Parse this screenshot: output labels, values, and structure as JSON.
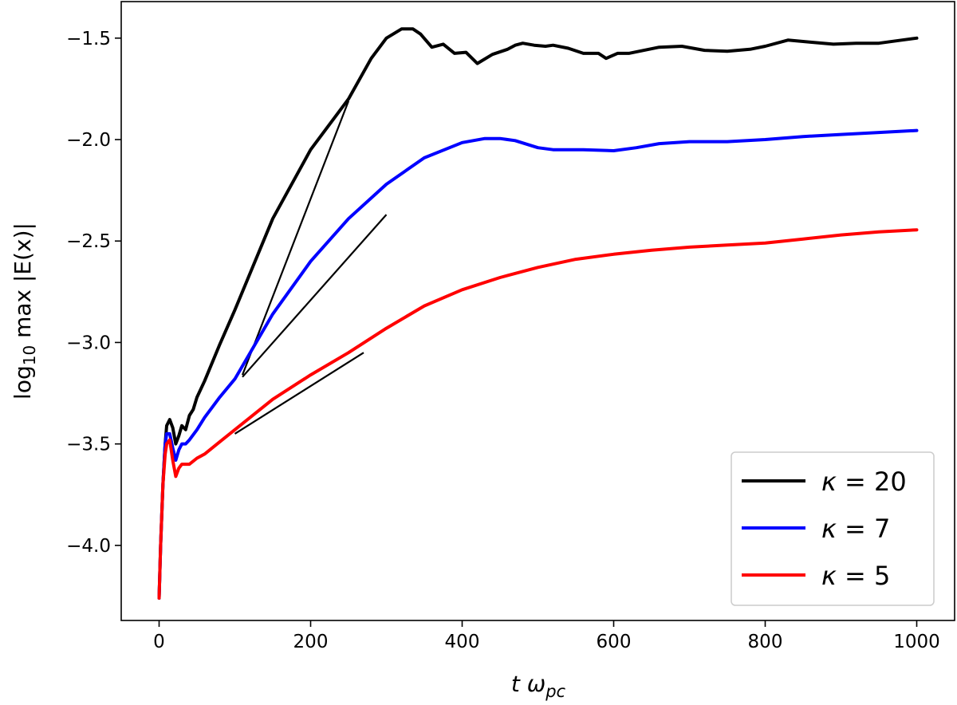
{
  "chart_data": {
    "type": "line",
    "xlabel": "t ω_pc",
    "xlabel_parts": {
      "main": "t ω",
      "sub": "pc"
    },
    "ylabel": "log10 max |E(x)|",
    "ylabel_parts": {
      "pre": "log",
      "sub": "10",
      "post": " max |E(x)|"
    },
    "xlim": [
      -50,
      1050
    ],
    "ylim": [
      -4.37,
      -1.32
    ],
    "xticks": [
      0,
      200,
      400,
      600,
      800,
      1000
    ],
    "xtick_labels": [
      "0",
      "200",
      "400",
      "600",
      "800",
      "1000"
    ],
    "yticks": [
      -4.0,
      -3.5,
      -3.0,
      -2.5,
      -2.0,
      -1.5
    ],
    "ytick_labels": [
      "−4.0",
      "−3.5",
      "−3.0",
      "−2.5",
      "−2.0",
      "−1.5"
    ],
    "grid": false,
    "legend_position": "bottom-right",
    "series": [
      {
        "name": "κ = 20",
        "label_parts": {
          "sym": "κ",
          "rest": " = 20"
        },
        "color": "#000000",
        "points": [
          [
            0,
            -4.26
          ],
          [
            2,
            -4.0
          ],
          [
            5,
            -3.7
          ],
          [
            8,
            -3.5
          ],
          [
            10,
            -3.41
          ],
          [
            14,
            -3.38
          ],
          [
            18,
            -3.42
          ],
          [
            22,
            -3.5
          ],
          [
            26,
            -3.46
          ],
          [
            30,
            -3.41
          ],
          [
            35,
            -3.43
          ],
          [
            40,
            -3.36
          ],
          [
            45,
            -3.33
          ],
          [
            50,
            -3.27
          ],
          [
            60,
            -3.19
          ],
          [
            80,
            -3.01
          ],
          [
            100,
            -2.84
          ],
          [
            120,
            -2.66
          ],
          [
            150,
            -2.39
          ],
          [
            200,
            -2.05
          ],
          [
            250,
            -1.8
          ],
          [
            280,
            -1.6
          ],
          [
            300,
            -1.5
          ],
          [
            320,
            -1.455
          ],
          [
            335,
            -1.455
          ],
          [
            345,
            -1.48
          ],
          [
            360,
            -1.545
          ],
          [
            375,
            -1.53
          ],
          [
            390,
            -1.575
          ],
          [
            405,
            -1.57
          ],
          [
            420,
            -1.625
          ],
          [
            440,
            -1.58
          ],
          [
            460,
            -1.555
          ],
          [
            470,
            -1.535
          ],
          [
            480,
            -1.525
          ],
          [
            495,
            -1.535
          ],
          [
            510,
            -1.54
          ],
          [
            520,
            -1.535
          ],
          [
            540,
            -1.55
          ],
          [
            560,
            -1.575
          ],
          [
            580,
            -1.575
          ],
          [
            590,
            -1.6
          ],
          [
            605,
            -1.575
          ],
          [
            620,
            -1.575
          ],
          [
            640,
            -1.56
          ],
          [
            660,
            -1.545
          ],
          [
            690,
            -1.54
          ],
          [
            720,
            -1.56
          ],
          [
            750,
            -1.565
          ],
          [
            780,
            -1.555
          ],
          [
            800,
            -1.54
          ],
          [
            830,
            -1.51
          ],
          [
            860,
            -1.52
          ],
          [
            890,
            -1.53
          ],
          [
            920,
            -1.525
          ],
          [
            950,
            -1.525
          ],
          [
            980,
            -1.51
          ],
          [
            1000,
            -1.5
          ]
        ]
      },
      {
        "name": "κ = 7",
        "label_parts": {
          "sym": "κ",
          "rest": " = 7"
        },
        "color": "#0000ff",
        "points": [
          [
            0,
            -4.26
          ],
          [
            2,
            -4.0
          ],
          [
            5,
            -3.7
          ],
          [
            8,
            -3.5
          ],
          [
            10,
            -3.45
          ],
          [
            14,
            -3.45
          ],
          [
            18,
            -3.52
          ],
          [
            22,
            -3.58
          ],
          [
            26,
            -3.53
          ],
          [
            30,
            -3.5
          ],
          [
            35,
            -3.5
          ],
          [
            40,
            -3.48
          ],
          [
            50,
            -3.43
          ],
          [
            60,
            -3.37
          ],
          [
            80,
            -3.27
          ],
          [
            100,
            -3.18
          ],
          [
            150,
            -2.86
          ],
          [
            200,
            -2.6
          ],
          [
            250,
            -2.39
          ],
          [
            300,
            -2.22
          ],
          [
            350,
            -2.09
          ],
          [
            400,
            -2.015
          ],
          [
            430,
            -1.995
          ],
          [
            450,
            -1.995
          ],
          [
            470,
            -2.005
          ],
          [
            500,
            -2.04
          ],
          [
            520,
            -2.05
          ],
          [
            560,
            -2.05
          ],
          [
            600,
            -2.055
          ],
          [
            630,
            -2.04
          ],
          [
            660,
            -2.02
          ],
          [
            700,
            -2.01
          ],
          [
            750,
            -2.01
          ],
          [
            800,
            -2.0
          ],
          [
            850,
            -1.985
          ],
          [
            900,
            -1.975
          ],
          [
            950,
            -1.965
          ],
          [
            1000,
            -1.955
          ]
        ]
      },
      {
        "name": "κ = 5",
        "label_parts": {
          "sym": "κ",
          "rest": " = 5"
        },
        "color": "#ff0000",
        "points": [
          [
            0,
            -4.26
          ],
          [
            2,
            -4.0
          ],
          [
            5,
            -3.7
          ],
          [
            8,
            -3.55
          ],
          [
            10,
            -3.5
          ],
          [
            14,
            -3.48
          ],
          [
            18,
            -3.58
          ],
          [
            22,
            -3.66
          ],
          [
            26,
            -3.62
          ],
          [
            30,
            -3.6
          ],
          [
            40,
            -3.6
          ],
          [
            50,
            -3.57
          ],
          [
            60,
            -3.55
          ],
          [
            80,
            -3.49
          ],
          [
            100,
            -3.43
          ],
          [
            150,
            -3.28
          ],
          [
            200,
            -3.16
          ],
          [
            250,
            -3.05
          ],
          [
            300,
            -2.93
          ],
          [
            350,
            -2.82
          ],
          [
            400,
            -2.74
          ],
          [
            450,
            -2.68
          ],
          [
            500,
            -2.63
          ],
          [
            550,
            -2.59
          ],
          [
            600,
            -2.565
          ],
          [
            650,
            -2.545
          ],
          [
            700,
            -2.53
          ],
          [
            750,
            -2.52
          ],
          [
            800,
            -2.51
          ],
          [
            850,
            -2.49
          ],
          [
            900,
            -2.47
          ],
          [
            950,
            -2.455
          ],
          [
            1000,
            -2.445
          ]
        ]
      }
    ],
    "fit_lines": [
      {
        "name": "fit-kappa-20",
        "color": "#000000",
        "points": [
          [
            110,
            -3.16
          ],
          [
            250,
            -1.81
          ]
        ]
      },
      {
        "name": "fit-kappa-7",
        "color": "#000000",
        "points": [
          [
            110,
            -3.17
          ],
          [
            300,
            -2.37
          ]
        ]
      },
      {
        "name": "fit-kappa-5",
        "color": "#000000",
        "points": [
          [
            100,
            -3.45
          ],
          [
            270,
            -3.05
          ]
        ]
      }
    ]
  }
}
